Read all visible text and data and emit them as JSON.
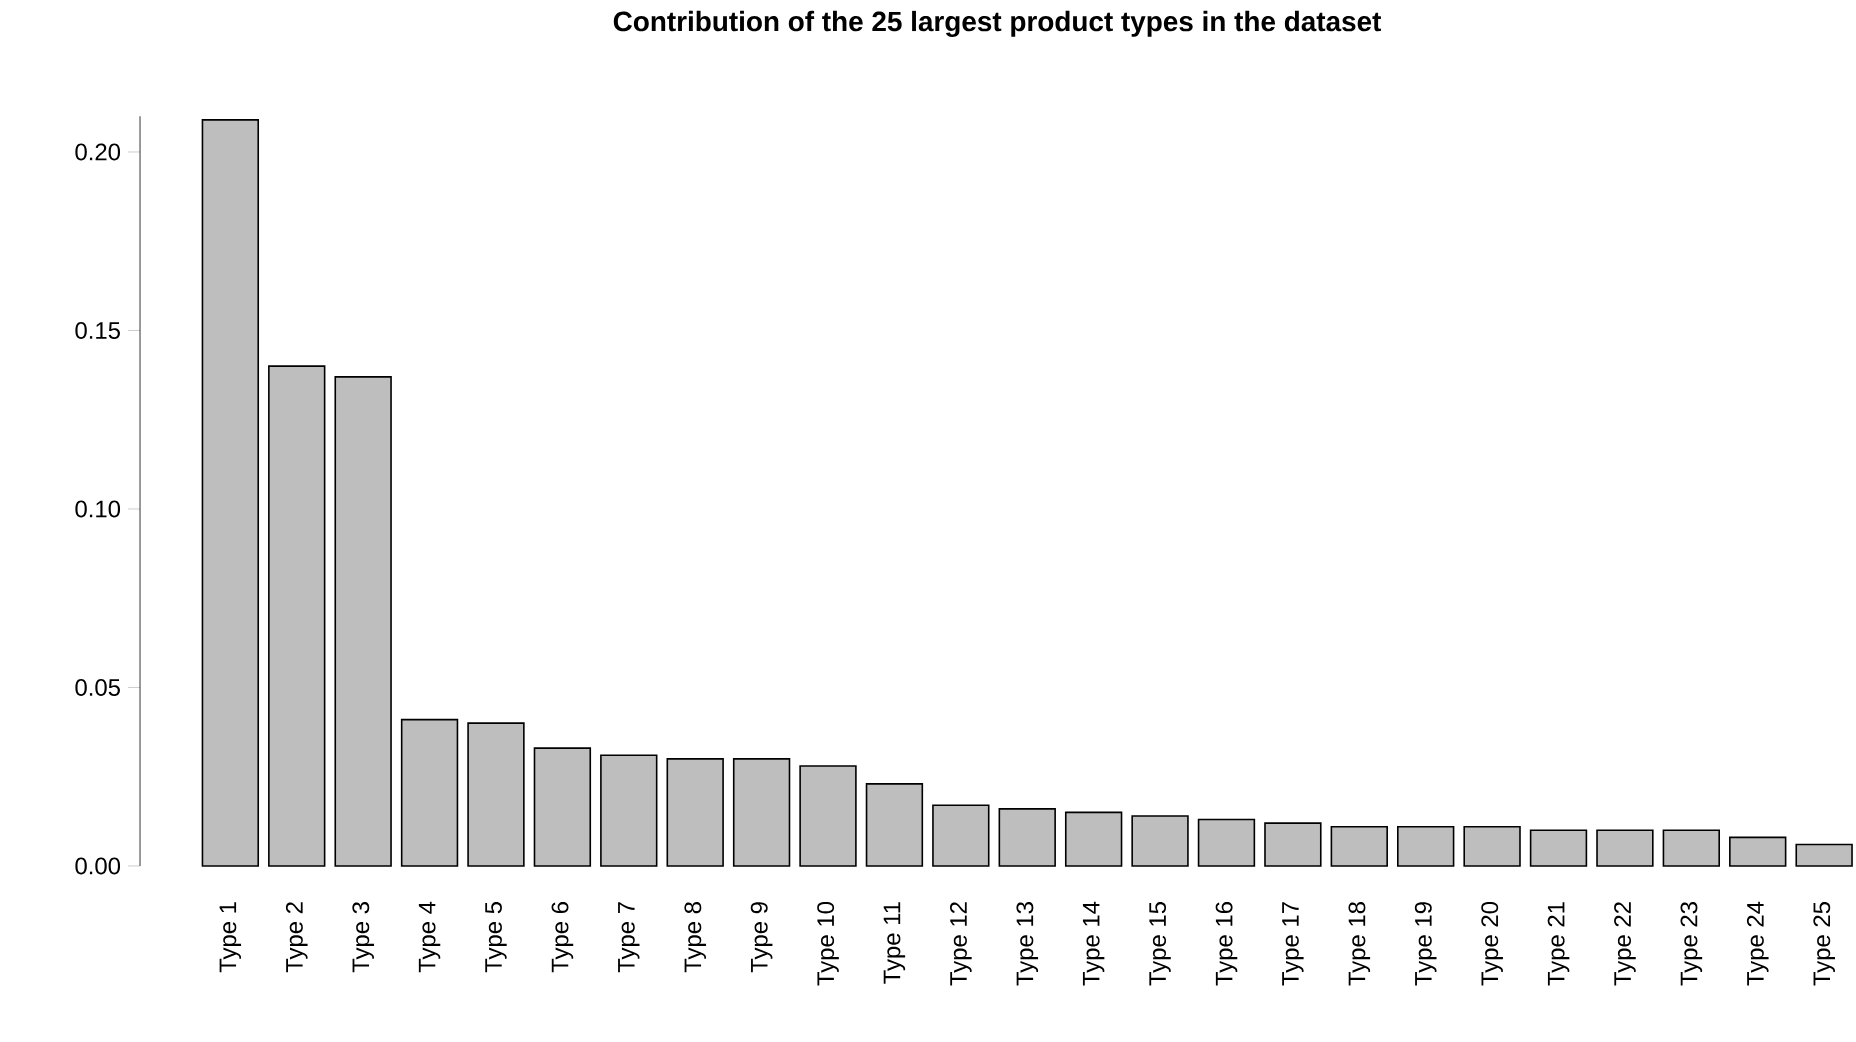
{
  "chart_data": {
    "type": "bar",
    "title": "Contribution of the 25 largest product types in the dataset",
    "categories": [
      "Type 1",
      "Type 2",
      "Type 3",
      "Type 4",
      "Type 5",
      "Type 6",
      "Type 7",
      "Type 8",
      "Type 9",
      "Type 10",
      "Type 11",
      "Type 12",
      "Type 13",
      "Type 14",
      "Type 15",
      "Type 16",
      "Type 17",
      "Type 18",
      "Type 19",
      "Type 20",
      "Type 21",
      "Type 22",
      "Type 23",
      "Type 24",
      "Type 25"
    ],
    "values": [
      0.209,
      0.14,
      0.137,
      0.041,
      0.04,
      0.033,
      0.031,
      0.03,
      0.03,
      0.028,
      0.023,
      0.017,
      0.016,
      0.015,
      0.014,
      0.013,
      0.012,
      0.011,
      0.011,
      0.011,
      0.01,
      0.01,
      0.01,
      0.008,
      0.006
    ],
    "color": "#bebebe",
    "ylim": [
      0,
      0.21
    ],
    "yticks": [
      {
        "value": 0,
        "label": "0.00"
      },
      {
        "value": 0.05,
        "label": "0.05"
      },
      {
        "value": 0.1,
        "label": "0.10"
      },
      {
        "value": 0.15,
        "label": "0.15"
      },
      {
        "value": 0.2,
        "label": "0.20"
      }
    ]
  }
}
